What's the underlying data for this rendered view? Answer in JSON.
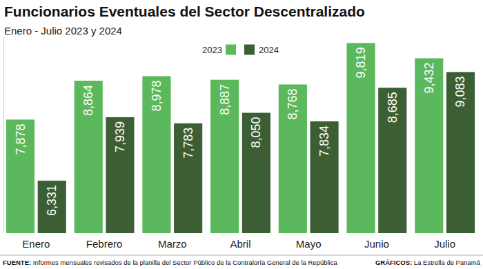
{
  "chart_data": {
    "type": "bar",
    "title": "Funcionarios Eventuales del Sector Descentralizado",
    "subtitle": "Enero - Julio 2023 y 2024",
    "categories": [
      "Enero",
      "Febrero",
      "Marzo",
      "Abril",
      "Mayo",
      "Junio",
      "Julio"
    ],
    "series": [
      {
        "name": "2023",
        "color": "#5cb85c",
        "values": [
          7878,
          8864,
          8978,
          8887,
          8768,
          9819,
          9432
        ],
        "value_labels": [
          "7,878",
          "8,864",
          "8,978",
          "8,887",
          "8,768",
          "9,819",
          "9,432"
        ]
      },
      {
        "name": "2024",
        "color": "#3b5e35",
        "values": [
          6331,
          7939,
          7783,
          8050,
          7834,
          8685,
          9083
        ],
        "value_labels": [
          "6,331",
          "7,939",
          "7,783",
          "8,050",
          "7,834",
          "8,685",
          "9,083"
        ]
      }
    ],
    "ylim": [
      5000,
      10000
    ],
    "tick_labels": "x",
    "data_labels": true,
    "legend": "top",
    "source_label": "FUENTE:",
    "source": "Informes mensuales revisados de la planilla del Sector Público de la Contraloría General de la República",
    "credit_label": "GRÁFICOS:",
    "credit": "La Estrella de Panamá"
  }
}
